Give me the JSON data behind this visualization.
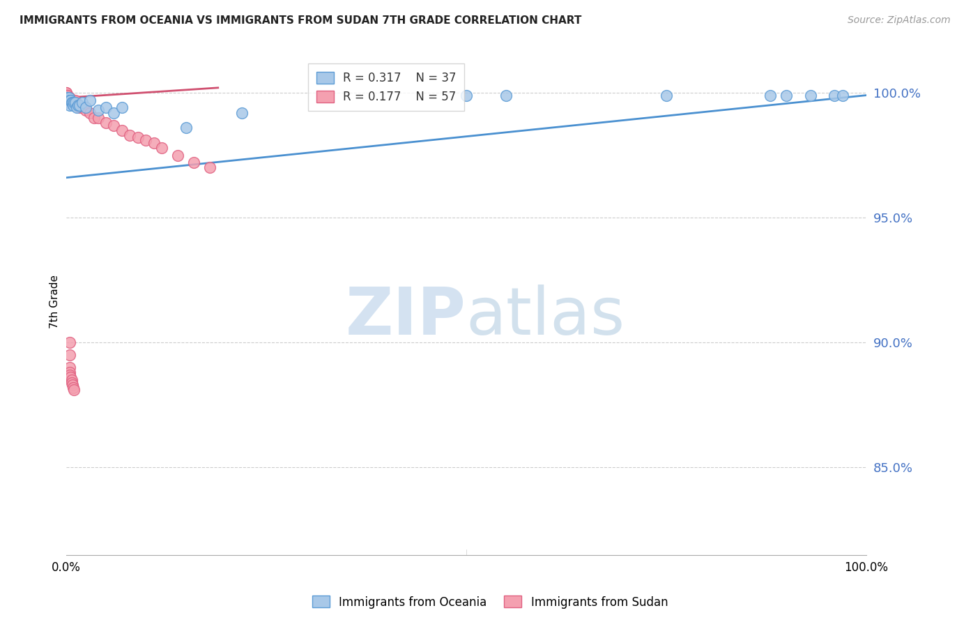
{
  "title": "IMMIGRANTS FROM OCEANIA VS IMMIGRANTS FROM SUDAN 7TH GRADE CORRELATION CHART",
  "source": "Source: ZipAtlas.com",
  "ylabel": "7th Grade",
  "ylabel_ticks": [
    "85.0%",
    "90.0%",
    "95.0%",
    "100.0%"
  ],
  "ylabel_tick_vals": [
    0.85,
    0.9,
    0.95,
    1.0
  ],
  "xlim": [
    0.0,
    1.0
  ],
  "ylim": [
    0.815,
    1.018
  ],
  "background_color": "#ffffff",
  "watermark_zip": "ZIP",
  "watermark_atlas": "atlas",
  "legend_r1": "R = 0.317",
  "legend_n1": "N = 37",
  "legend_r2": "R = 0.177",
  "legend_n2": "N = 57",
  "blue_color": "#a8c8e8",
  "blue_edge_color": "#5b9bd5",
  "pink_color": "#f4a0b0",
  "pink_edge_color": "#e06080",
  "blue_line_color": "#4a90d0",
  "pink_line_color": "#d05070",
  "blue_line_x0": 0.0,
  "blue_line_y0": 0.966,
  "blue_line_x1": 1.0,
  "blue_line_y1": 0.999,
  "pink_line_x0": 0.0,
  "pink_line_y0": 0.998,
  "pink_line_x1": 0.19,
  "pink_line_y1": 1.002,
  "oceania_x": [
    0.001,
    0.001,
    0.001,
    0.001,
    0.002,
    0.002,
    0.003,
    0.003,
    0.004,
    0.005,
    0.005,
    0.006,
    0.007,
    0.008,
    0.009,
    0.01,
    0.012,
    0.013,
    0.015,
    0.017,
    0.02,
    0.025,
    0.03,
    0.04,
    0.05,
    0.06,
    0.07,
    0.15,
    0.22,
    0.5,
    0.55,
    0.75,
    0.88,
    0.9,
    0.93,
    0.96,
    0.97
  ],
  "oceania_y": [
    0.998,
    0.998,
    0.997,
    0.997,
    0.997,
    0.996,
    0.997,
    0.996,
    0.998,
    0.997,
    0.995,
    0.997,
    0.996,
    0.996,
    0.995,
    0.996,
    0.996,
    0.994,
    0.995,
    0.995,
    0.996,
    0.994,
    0.997,
    0.993,
    0.994,
    0.992,
    0.994,
    0.986,
    0.992,
    0.999,
    0.999,
    0.999,
    0.999,
    0.999,
    0.999,
    0.999,
    0.999
  ],
  "sudan_x": [
    0.0005,
    0.0005,
    0.0005,
    0.0005,
    0.0005,
    0.0005,
    0.001,
    0.001,
    0.001,
    0.001,
    0.001,
    0.0015,
    0.002,
    0.002,
    0.002,
    0.003,
    0.003,
    0.004,
    0.004,
    0.005,
    0.005,
    0.006,
    0.007,
    0.008,
    0.009,
    0.01,
    0.012,
    0.013,
    0.015,
    0.017,
    0.02,
    0.025,
    0.03,
    0.035,
    0.04,
    0.05,
    0.06,
    0.07,
    0.08,
    0.09,
    0.1,
    0.11,
    0.12,
    0.14,
    0.16,
    0.18,
    0.005,
    0.005,
    0.005,
    0.005,
    0.005,
    0.006,
    0.007,
    0.007,
    0.008,
    0.009,
    0.01
  ],
  "sudan_y": [
    1.0,
    1.0,
    0.999,
    0.999,
    0.998,
    0.998,
    0.999,
    0.999,
    0.998,
    0.998,
    0.998,
    0.998,
    0.999,
    0.998,
    0.997,
    0.998,
    0.997,
    0.997,
    0.996,
    0.998,
    0.997,
    0.996,
    0.997,
    0.996,
    0.996,
    0.996,
    0.997,
    0.995,
    0.995,
    0.994,
    0.994,
    0.993,
    0.992,
    0.99,
    0.99,
    0.988,
    0.987,
    0.985,
    0.983,
    0.982,
    0.981,
    0.98,
    0.978,
    0.975,
    0.972,
    0.97,
    0.9,
    0.895,
    0.89,
    0.888,
    0.887,
    0.886,
    0.885,
    0.884,
    0.883,
    0.882,
    0.881
  ]
}
